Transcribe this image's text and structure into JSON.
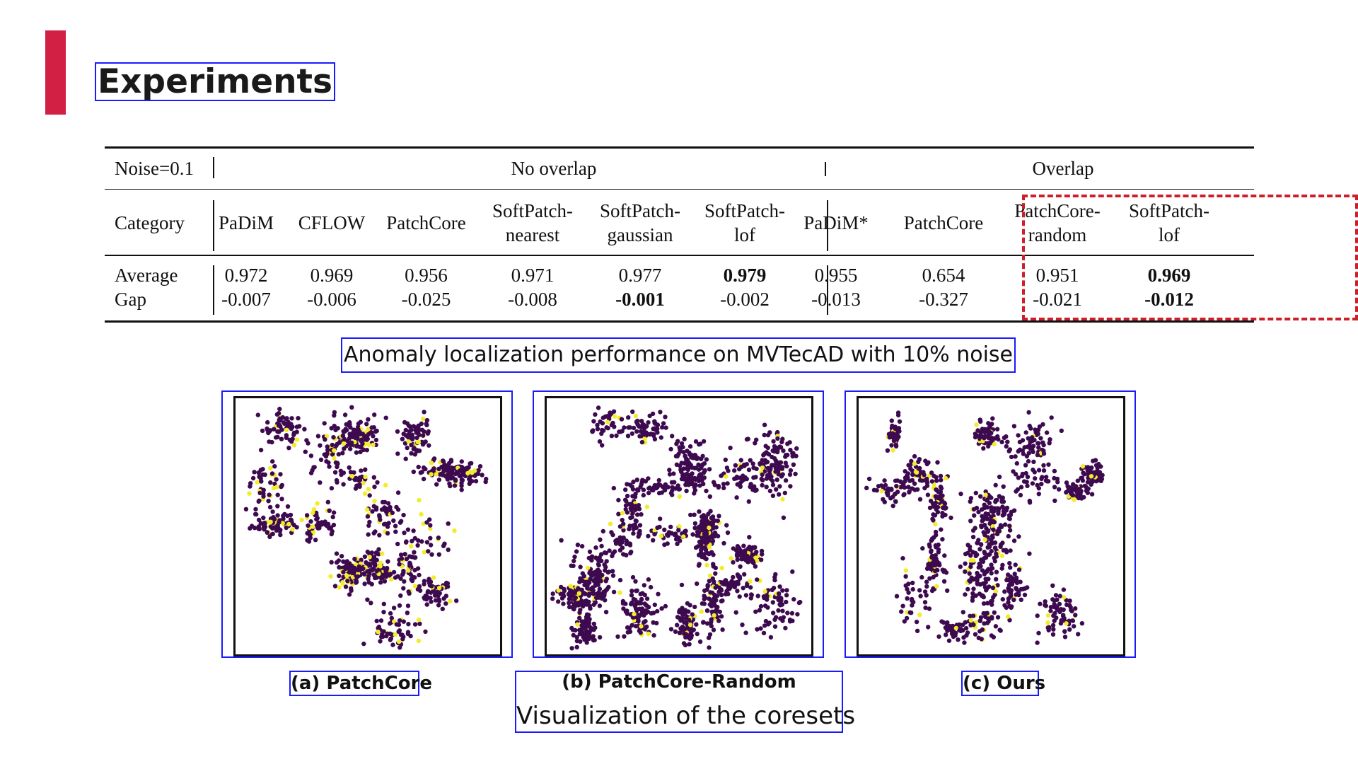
{
  "slide": {
    "title": "Experiments",
    "accent_color": "#d21f44"
  },
  "table": {
    "noise_label": "Noise=0.1",
    "group_no_overlap": "No overlap",
    "group_overlap": "Overlap",
    "category_label": "Category",
    "columns": [
      {
        "line1": "PaDiM",
        "line2": ""
      },
      {
        "line1": "CFLOW",
        "line2": ""
      },
      {
        "line1": "PatchCore",
        "line2": ""
      },
      {
        "line1": "SoftPatch-",
        "line2": "nearest"
      },
      {
        "line1": "SoftPatch-",
        "line2": "gaussian"
      },
      {
        "line1": "SoftPatch-",
        "line2": "lof"
      },
      {
        "line1": "PaDiM*",
        "line2": ""
      },
      {
        "line1": "PatchCore",
        "line2": ""
      },
      {
        "line1": "PatchCore-",
        "line2": "random"
      },
      {
        "line1": "SoftPatch-",
        "line2": "lof"
      }
    ],
    "rows": [
      {
        "label": "Average",
        "values": [
          "0.972",
          "0.969",
          "0.956",
          "0.971",
          "0.977",
          "0.979",
          "0.955",
          "0.654",
          "0.951",
          "0.969"
        ],
        "bold": [
          false,
          false,
          false,
          false,
          false,
          true,
          false,
          false,
          false,
          true
        ]
      },
      {
        "label": "Gap",
        "values": [
          "-0.007",
          "-0.006",
          "-0.025",
          "-0.008",
          "-0.001",
          "-0.002",
          "-0.013",
          "-0.327",
          "-0.021",
          "-0.012"
        ],
        "bold": [
          false,
          false,
          false,
          false,
          true,
          false,
          false,
          false,
          false,
          true
        ]
      }
    ],
    "highlight_color": "#cc1f2a",
    "caption": "Anomaly localization performance on MVTecAD with 10% noise"
  },
  "figure": {
    "panels": [
      {
        "caption": "(a) PatchCore",
        "yellow_ratio": 0.18
      },
      {
        "caption": "(b) PatchCore-Random",
        "yellow_ratio": 0.06
      },
      {
        "caption": "(c) Ours",
        "yellow_ratio": 0.07
      }
    ],
    "point_color": "#3d0a4f",
    "highlight_point_color": "#f2ec2a",
    "caption": "Visualization of the coresets"
  }
}
